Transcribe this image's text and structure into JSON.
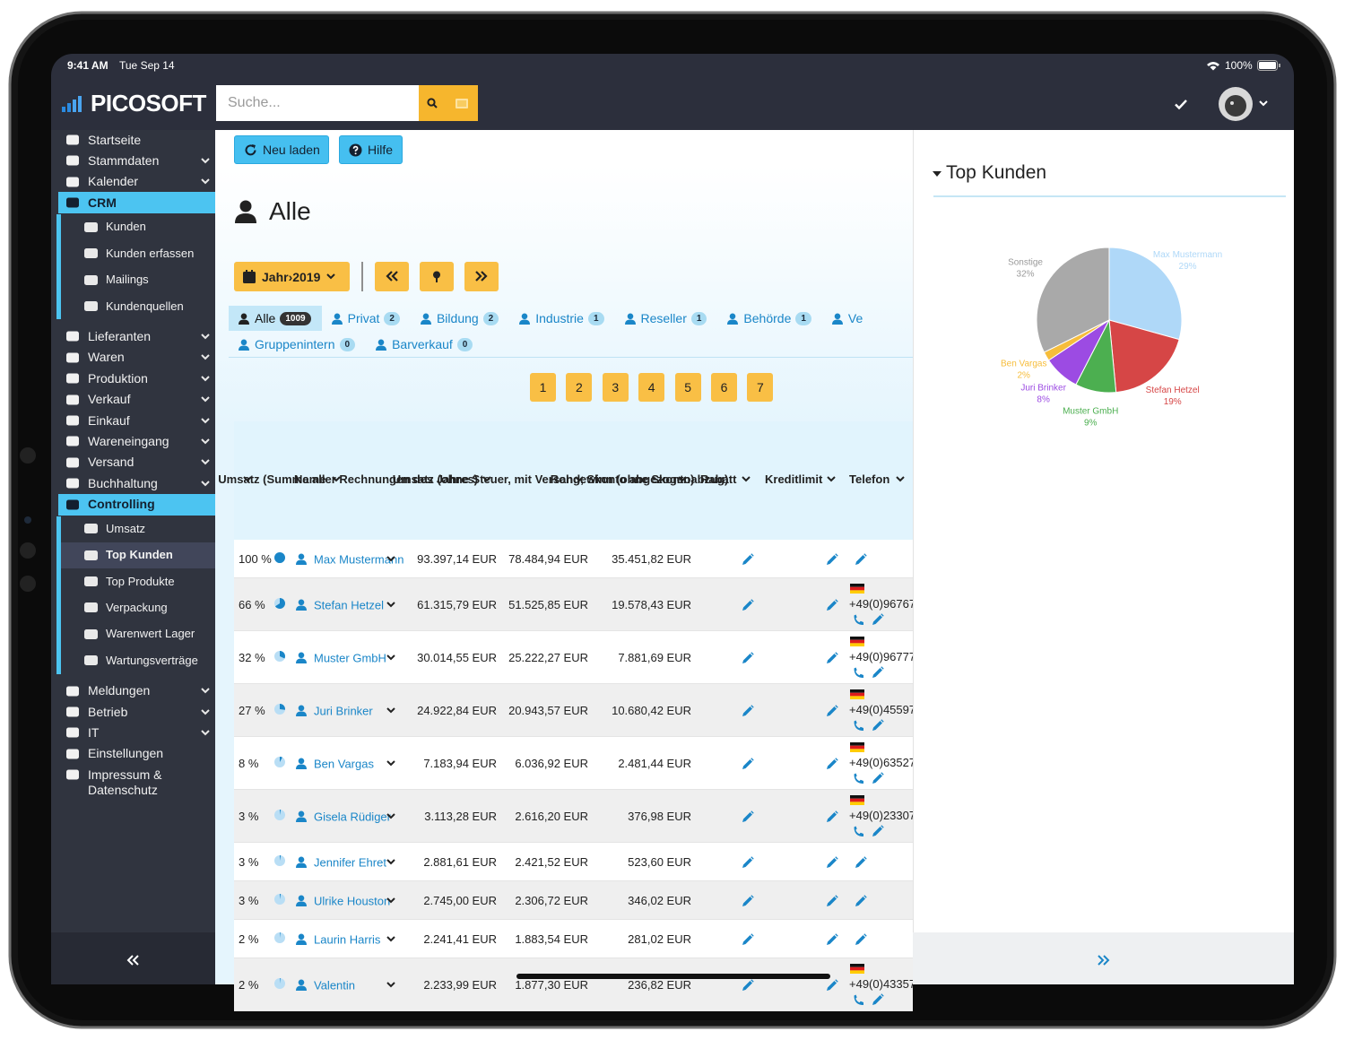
{
  "status_bar": {
    "time": "9:41 AM",
    "date": "Tue Sep 14",
    "battery": "100%"
  },
  "header": {
    "brand": "PICOSOFT",
    "search_placeholder": "Suche..."
  },
  "sidebar": {
    "items": [
      {
        "label": "Startseite"
      },
      {
        "label": "Stammdaten",
        "expandable": true
      },
      {
        "label": "Kalender",
        "expandable": true
      },
      {
        "label": "CRM",
        "active": true,
        "children": [
          {
            "label": "Kunden"
          },
          {
            "label": "Kunden erfassen"
          },
          {
            "label": "Mailings"
          },
          {
            "label": "Kundenquellen"
          }
        ]
      },
      {
        "label": "Lieferanten",
        "expandable": true
      },
      {
        "label": "Waren",
        "expandable": true
      },
      {
        "label": "Produktion",
        "expandable": true
      },
      {
        "label": "Verkauf",
        "expandable": true
      },
      {
        "label": "Einkauf",
        "expandable": true
      },
      {
        "label": "Wareneingang",
        "expandable": true
      },
      {
        "label": "Versand",
        "expandable": true
      },
      {
        "label": "Buchhaltung",
        "expandable": true
      },
      {
        "label": "Controlling",
        "active": true,
        "children": [
          {
            "label": "Umsatz"
          },
          {
            "label": "Top Kunden",
            "current": true
          },
          {
            "label": "Top Produkte"
          },
          {
            "label": "Verpackung"
          },
          {
            "label": "Warenwert Lager"
          },
          {
            "label": "Wartungsverträge"
          }
        ]
      },
      {
        "label": "Meldungen",
        "expandable": true
      },
      {
        "label": "Betrieb",
        "expandable": true
      },
      {
        "label": "IT",
        "expandable": true
      },
      {
        "label": "Einstellungen"
      },
      {
        "label": "Impressum & Datenschutz"
      }
    ]
  },
  "toolbar": {
    "buttons": [
      "Neu laden",
      "Hilfe"
    ]
  },
  "page": {
    "title": "Alle",
    "period": "Jahr›2019"
  },
  "tabs": [
    {
      "label": "Alle",
      "count": 1009,
      "active": true
    },
    {
      "label": "Privat",
      "count": 2
    },
    {
      "label": "Bildung",
      "count": 2
    },
    {
      "label": "Industrie",
      "count": 1
    },
    {
      "label": "Reseller",
      "count": 1
    },
    {
      "label": "Behörde",
      "count": 1
    },
    {
      "label": "Ve"
    },
    {
      "label": "Gruppenintern",
      "count": 0
    },
    {
      "label": "Barverkauf",
      "count": 0
    }
  ],
  "pagination": [
    1,
    2,
    3,
    4,
    5,
    6,
    7
  ],
  "table": {
    "headers": [
      "Name",
      "Umsatz (Summe aller Rechnungen des Jahres)",
      "Umsatz (ohne Steuer, mit Versand, Skonto abgezogen)",
      "Rohgewinn (ohne Skontoabzug)",
      "Rabatt",
      "Kreditlimit",
      "Telefon"
    ],
    "rows": [
      {
        "share": "100 %",
        "name": "Max Mustermann",
        "umsatz": "93.397,14 EUR",
        "netto": "78.484,94 EUR",
        "rohgewinn": "35.451,82 EUR"
      },
      {
        "share": "66 %",
        "name": "Stefan Hetzel",
        "umsatz": "61.315,79 EUR",
        "netto": "51.525,85 EUR",
        "rohgewinn": "19.578,43 EUR",
        "telefon": "+49(0)96767"
      },
      {
        "share": "32 %",
        "name": "Muster GmbH",
        "umsatz": "30.014,55 EUR",
        "netto": "25.222,27 EUR",
        "rohgewinn": "7.881,69 EUR",
        "telefon": "+49(0)96777"
      },
      {
        "share": "27 %",
        "name": "Juri Brinker",
        "umsatz": "24.922,84 EUR",
        "netto": "20.943,57 EUR",
        "rohgewinn": "10.680,42 EUR",
        "telefon": "+49(0)45597"
      },
      {
        "share": "8 %",
        "name": "Ben Vargas",
        "umsatz": "7.183,94 EUR",
        "netto": "6.036,92 EUR",
        "rohgewinn": "2.481,44 EUR",
        "telefon": "+49(0)63527"
      },
      {
        "share": "3 %",
        "name": "Gisela Rüdiger",
        "umsatz": "3.113,28 EUR",
        "netto": "2.616,20 EUR",
        "rohgewinn": "376,98 EUR",
        "telefon": "+49(0)23307"
      },
      {
        "share": "3 %",
        "name": "Jennifer Ehret",
        "umsatz": "2.881,61 EUR",
        "netto": "2.421,52 EUR",
        "rohgewinn": "523,60 EUR"
      },
      {
        "share": "3 %",
        "name": "Ulrike Houston",
        "umsatz": "2.745,00 EUR",
        "netto": "2.306,72 EUR",
        "rohgewinn": "346,02 EUR"
      },
      {
        "share": "2 %",
        "name": "Laurin Harris",
        "umsatz": "2.241,41 EUR",
        "netto": "1.883,54 EUR",
        "rohgewinn": "281,02 EUR"
      },
      {
        "share": "2 %",
        "name": "Valentin",
        "umsatz": "2.233,99 EUR",
        "netto": "1.877,30 EUR",
        "rohgewinn": "236,82 EUR",
        "telefon": "+49(0)43357"
      }
    ]
  },
  "chart_data": {
    "type": "pie",
    "title": "Top Kunden",
    "categories": [
      "Max Mustermann",
      "Stefan Hetzel",
      "Muster GmbH",
      "Juri Brinker",
      "Ben Vargas",
      "Sonstige"
    ],
    "values": [
      29,
      19,
      9,
      8,
      2,
      32
    ],
    "value_labels": [
      "29%",
      "19%",
      "9%",
      "8%",
      "2%",
      "32%"
    ],
    "colors": [
      "#afd8f8",
      "#d64646",
      "#4caf50",
      "#9c4be3",
      "#f6bd3b",
      "#a9a9a9"
    ]
  }
}
